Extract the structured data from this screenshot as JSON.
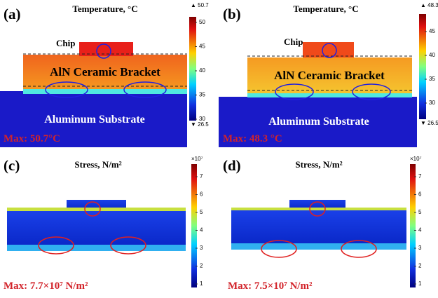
{
  "panels": [
    {
      "label": "(a)",
      "title": "Temperature, °C",
      "chip": "Chip",
      "bracket": "AlN Ceramic Bracket",
      "substrate": "Aluminum Substrate",
      "max": "Max: 50.7°C",
      "colorbar": {
        "top": "▲ 50.7",
        "bottom": "▼ 26.5",
        "ticks": [
          "50",
          "45",
          "40",
          "35",
          "30"
        ]
      }
    },
    {
      "label": "(b)",
      "title": "Temperature, °C",
      "chip": "Chip",
      "bracket": "AlN Ceramic Bracket",
      "substrate": "Aluminum Substrate",
      "max": "Max: 48.3 °C",
      "colorbar": {
        "top": "▲ 48.3",
        "bottom": "▼ 26.5",
        "ticks": [
          "45",
          "40",
          "35",
          "30"
        ]
      }
    },
    {
      "label": "(c)",
      "title": "Stress, N/m²",
      "max": "Max: 7.7×10⁷ N/m²",
      "colorbar": {
        "top": "×10⁷",
        "ticks": [
          "7",
          "6",
          "5",
          "4",
          "3",
          "2",
          "1"
        ]
      }
    },
    {
      "label": "(d)",
      "title": "Stress, N/m²",
      "max": "Max: 7.5×10⁷ N/m²",
      "colorbar": {
        "top": "×10⁷",
        "ticks": [
          "7",
          "6",
          "5",
          "4",
          "3",
          "2",
          "1"
        ]
      }
    }
  ]
}
